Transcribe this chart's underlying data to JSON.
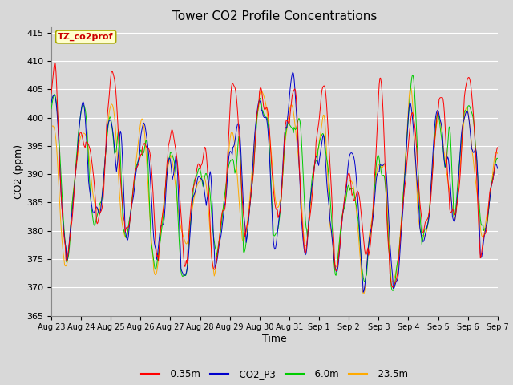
{
  "title": "Tower CO2 Profile Concentrations",
  "xlabel": "Time",
  "ylabel": "CO2 (ppm)",
  "ylim": [
    365,
    416
  ],
  "yticks": [
    365,
    370,
    375,
    380,
    385,
    390,
    395,
    400,
    405,
    410,
    415
  ],
  "xtick_labels": [
    "Aug 23",
    "Aug 24",
    "Aug 25",
    "Aug 26",
    "Aug 27",
    "Aug 28",
    "Aug 29",
    "Aug 30",
    "Aug 31",
    "Sep 1",
    "Sep 2",
    "Sep 3",
    "Sep 4",
    "Sep 5",
    "Sep 6",
    "Sep 7"
  ],
  "annotation_text": "TZ_co2prof",
  "annotation_box_color": "#ffffcc",
  "annotation_text_color": "#cc0000",
  "annotation_border_color": "#aaaa00",
  "colors": {
    "0.35m": "#ff0000",
    "CO2_P3": "#0000cc",
    "6.0m": "#00cc00",
    "23.5m": "#ffaa00"
  },
  "legend_labels": [
    "0.35m",
    "CO2_P3",
    "6.0m",
    "23.5m"
  ],
  "figure_facecolor": "#d8d8d8",
  "plot_facecolor": "#d8d8d8",
  "grid_color": "#ffffff",
  "n_points": 672,
  "seed": 42
}
